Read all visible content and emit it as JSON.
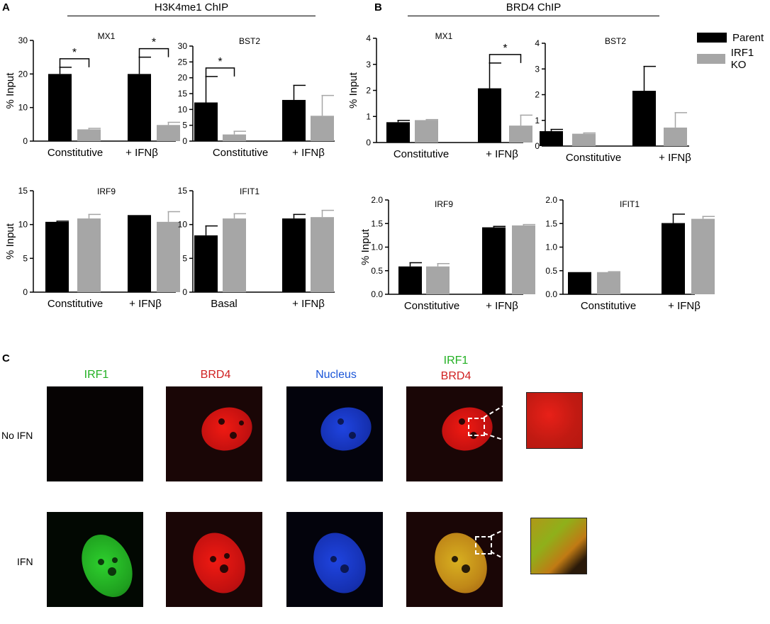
{
  "panel_labels": {
    "a": "A",
    "b": "B",
    "c": "C"
  },
  "panel_a_title": "H3K4me1 ChIP",
  "panel_b_title": "BRD4 ChIP",
  "legend": [
    {
      "label": "Parent",
      "color": "#000000"
    },
    {
      "label": "IRF1 KO",
      "color": "#a6a6a6"
    }
  ],
  "colors": {
    "parent": "#000000",
    "ko": "#a6a6a6"
  },
  "chart_data": [
    {
      "id": "a-mx1",
      "type": "bar",
      "title": "MX1",
      "ylabel": "% Input",
      "categories": [
        "Constitutive",
        "+ IFNβ"
      ],
      "ylim": [
        0,
        30
      ],
      "yticks": [
        0,
        10,
        20,
        30
      ],
      "yticklabels": [
        "0",
        "10",
        "20",
        "30"
      ],
      "series": [
        {
          "name": "Parent",
          "values": [
            20,
            20
          ],
          "errors": [
            2,
            5
          ]
        },
        {
          "name": "IRF1 KO",
          "values": [
            3.5,
            4.8
          ],
          "errors": [
            0.3,
            0.8
          ]
        }
      ],
      "annotations": [
        {
          "text": "*",
          "category": 0
        },
        {
          "text": "*",
          "category": 1
        }
      ]
    },
    {
      "id": "a-bst2",
      "type": "bar",
      "title": "BST2",
      "ylabel": "",
      "categories": [
        "Constitutive",
        "+ IFNβ"
      ],
      "ylim": [
        0,
        30
      ],
      "yticks": [
        0,
        5,
        10,
        15,
        20,
        25,
        30
      ],
      "yticklabels": [
        "0",
        "5",
        "10",
        "15",
        "20",
        "25",
        "30"
      ],
      "series": [
        {
          "name": "Parent",
          "values": [
            12.2,
            13
          ],
          "errors": [
            8.2,
            4.6
          ]
        },
        {
          "name": "IRF1 KO",
          "values": [
            2.1,
            8
          ],
          "errors": [
            1.0,
            6.4
          ]
        }
      ],
      "annotations": [
        {
          "text": "*",
          "category": 0
        }
      ]
    },
    {
      "id": "a-irf9",
      "type": "bar",
      "title": "IRF9",
      "ylabel": "% Input",
      "categories": [
        "Constitutive",
        "+ IFNβ"
      ],
      "ylim": [
        0,
        15
      ],
      "yticks": [
        0,
        5,
        10,
        15
      ],
      "yticklabels": [
        "0",
        "5",
        "10",
        "15"
      ],
      "series": [
        {
          "name": "Parent",
          "values": [
            10.4,
            11.4
          ],
          "errors": [
            0.1,
            0
          ]
        },
        {
          "name": "IRF1 KO",
          "values": [
            10.9,
            10.4
          ],
          "errors": [
            0.6,
            1.5
          ]
        }
      ],
      "annotations": []
    },
    {
      "id": "a-ifit1",
      "type": "bar",
      "title": "IFIT1",
      "ylabel": "",
      "categories": [
        "Basal",
        "+ IFNβ"
      ],
      "ylim": [
        0,
        15
      ],
      "yticks": [
        0,
        5,
        10,
        15
      ],
      "yticklabels": [
        "0",
        "5",
        "10",
        "15"
      ],
      "series": [
        {
          "name": "Parent",
          "values": [
            8.4,
            10.9
          ],
          "errors": [
            1.4,
            0.6
          ]
        },
        {
          "name": "IRF1 KO",
          "values": [
            10.9,
            11.1
          ],
          "errors": [
            0.7,
            1.0
          ]
        }
      ],
      "annotations": []
    },
    {
      "id": "b-mx1",
      "type": "bar",
      "title": "MX1",
      "ylabel": "% Input",
      "categories": [
        "Constitutive",
        "+ IFNβ"
      ],
      "ylim": [
        0,
        4
      ],
      "yticks": [
        0,
        1,
        2,
        3,
        4
      ],
      "yticklabels": [
        "0",
        "1",
        "2",
        "3",
        "4"
      ],
      "series": [
        {
          "name": "Parent",
          "values": [
            0.78,
            2.08
          ],
          "errors": [
            0.07,
            0.97
          ]
        },
        {
          "name": "IRF1 KO",
          "values": [
            0.86,
            0.65
          ],
          "errors": [
            0.02,
            0.4
          ]
        }
      ],
      "annotations": [
        {
          "text": "*",
          "category": 1
        }
      ]
    },
    {
      "id": "b-bst2",
      "type": "bar",
      "title": "BST2",
      "ylabel": "",
      "categories": [
        "Constitutive",
        "+ IFNβ"
      ],
      "ylim": [
        0,
        4
      ],
      "yticks": [
        0,
        1,
        2,
        3,
        4
      ],
      "yticklabels": [
        "0",
        "1",
        "2",
        "3",
        "4"
      ],
      "series": [
        {
          "name": "Parent",
          "values": [
            0.58,
            2.15
          ],
          "errors": [
            0.07,
            0.95
          ]
        },
        {
          "name": "IRF1 KO",
          "values": [
            0.48,
            0.72
          ],
          "errors": [
            0.03,
            0.58
          ]
        }
      ],
      "annotations": []
    },
    {
      "id": "b-irf9",
      "type": "bar",
      "title": "IRF9",
      "ylabel": "% Input",
      "categories": [
        "Constitutive",
        "+ IFNβ"
      ],
      "ylim": [
        0,
        2
      ],
      "yticks": [
        0,
        0.5,
        1,
        1.5,
        2
      ],
      "yticklabels": [
        "0.0",
        "0.5",
        "1.0",
        "1.5",
        "2.0"
      ],
      "series": [
        {
          "name": "Parent",
          "values": [
            0.59,
            1.42
          ],
          "errors": [
            0.08,
            0.02
          ]
        },
        {
          "name": "IRF1 KO",
          "values": [
            0.59,
            1.46
          ],
          "errors": [
            0.06,
            0.02
          ]
        }
      ],
      "annotations": []
    },
    {
      "id": "b-ifit1",
      "type": "bar",
      "title": "IFIT1",
      "ylabel": "",
      "categories": [
        "Constitutive",
        "+ IFNβ"
      ],
      "ylim": [
        0,
        2
      ],
      "yticks": [
        0,
        0.5,
        1,
        1.5,
        2
      ],
      "yticklabels": [
        "0.0",
        "0.5",
        "1.0",
        "1.5",
        "2.0"
      ],
      "series": [
        {
          "name": "Parent",
          "values": [
            0.47,
            1.51
          ],
          "errors": [
            0,
            0.19
          ]
        },
        {
          "name": "IRF1 KO",
          "values": [
            0.47,
            1.6
          ],
          "errors": [
            0.01,
            0.05
          ]
        }
      ],
      "annotations": []
    }
  ],
  "panel_c": {
    "columns": [
      {
        "label": "IRF1",
        "color": "#22b022"
      },
      {
        "label": "BRD4",
        "color": "#d02020"
      },
      {
        "label": "Nucleus",
        "color": "#1a55d8"
      },
      {
        "label_line1": "IRF1",
        "label_line2": "BRD4",
        "color1": "#22b022",
        "color2": "#d02020"
      }
    ],
    "rows": [
      {
        "label": "No IFN"
      },
      {
        "label": "IFN"
      }
    ]
  }
}
